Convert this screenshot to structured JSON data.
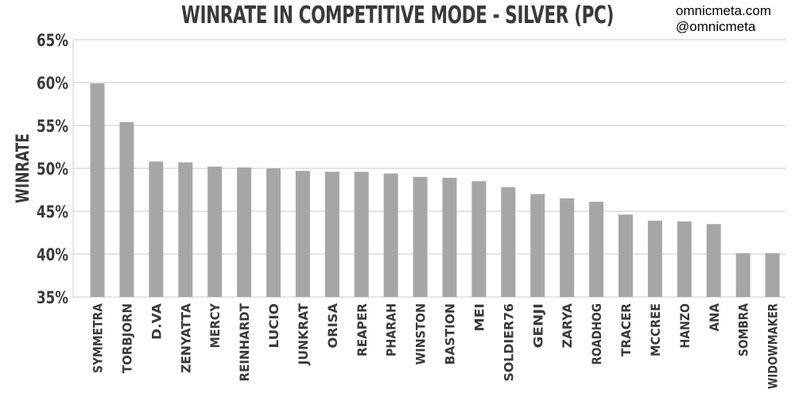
{
  "header": {
    "title": "WINRATE IN COMPETITIVE MODE - SILVER (PC)",
    "credit_site": "omnicmeta.com",
    "credit_handle": "@omnicmeta"
  },
  "chart_data": {
    "type": "bar",
    "title": "WINRATE IN COMPETITIVE MODE - SILVER (PC)",
    "xlabel": "",
    "ylabel": "WINRATE",
    "ylim": [
      35,
      65
    ],
    "yticks": [
      35,
      40,
      45,
      50,
      55,
      60,
      65
    ],
    "ytick_labels": [
      "35%",
      "40%",
      "45%",
      "50%",
      "55%",
      "60%",
      "65%"
    ],
    "grid": true,
    "bar_color": "#a6a6a6",
    "categories": [
      "SYMMETRA",
      "TORBJORN",
      "D.VA",
      "ZENYATTA",
      "MERCY",
      "REINHARDT",
      "LUCIO",
      "JUNKRAT",
      "ORISA",
      "REAPER",
      "PHARAH",
      "WINSTON",
      "BASTION",
      "MEI",
      "SOLDIER76",
      "GENJI",
      "ZARYA",
      "ROADHOG",
      "TRACER",
      "MCCREE",
      "HANZO",
      "ANA",
      "SOMBRA",
      "WIDOWMAKER"
    ],
    "values": [
      59.9,
      55.4,
      50.8,
      50.7,
      50.2,
      50.1,
      50.0,
      49.7,
      49.6,
      49.6,
      49.4,
      49.0,
      48.9,
      48.5,
      47.8,
      47.0,
      46.5,
      46.1,
      44.6,
      43.9,
      43.8,
      43.5,
      40.1,
      40.1
    ]
  }
}
